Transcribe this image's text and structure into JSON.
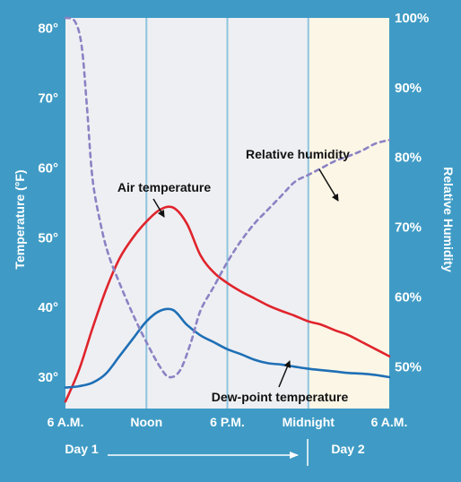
{
  "chart_data": {
    "type": "line",
    "title": "",
    "ylabel": "Temperature (°F)",
    "y2label": "Relative Humidity",
    "xlabel": "",
    "x_ticks": [
      "6 A.M.",
      "Noon",
      "6 P.M.",
      "Midnight",
      "6 A.M."
    ],
    "y_ticks": [
      "30°",
      "40°",
      "50°",
      "60°",
      "70°",
      "80°"
    ],
    "y2_ticks": [
      "50%",
      "60%",
      "70%",
      "80%",
      "90%",
      "100%"
    ],
    "ylim": [
      25.5,
      81.5
    ],
    "y2lim": [
      44,
      100
    ],
    "xlim": [
      0,
      24
    ],
    "grid": "vertical lines at each x tick",
    "legend": "none (series labeled by annotations with arrows)",
    "day_labels": {
      "day1": "Day 1",
      "day2": "Day 2"
    },
    "shaded_region": {
      "x_from": 18,
      "x_to": 24,
      "color": "#fbf6e6"
    },
    "series": [
      {
        "name": "Air temperature",
        "style": "solid",
        "color": "#e0242c",
        "axis": "left",
        "x": [
          0,
          1,
          2,
          3,
          4,
          5,
          6,
          7,
          8,
          9,
          10,
          11,
          12,
          13,
          14,
          15,
          16,
          17,
          18,
          19,
          20,
          21,
          22,
          23,
          24
        ],
        "values": [
          26.5,
          31,
          37,
          42.5,
          47,
          50,
          52.3,
          54,
          54.3,
          52,
          47.5,
          45,
          43.5,
          42.3,
          41.3,
          40.3,
          39.5,
          38.8,
          38,
          37.5,
          36.7,
          36,
          35,
          34,
          33
        ]
      },
      {
        "name": "Dew-point temperature",
        "style": "solid",
        "color": "#1e6fb5",
        "axis": "left",
        "x": [
          0,
          1,
          2,
          3,
          4,
          5,
          6,
          7,
          8,
          9,
          10,
          11,
          12,
          13,
          14,
          15,
          16,
          17,
          18,
          19,
          20,
          21,
          22,
          23,
          24
        ],
        "values": [
          28.5,
          28.7,
          29.2,
          30.5,
          33,
          35.5,
          38,
          39.5,
          39.6,
          37.5,
          36,
          35,
          34,
          33.3,
          32.5,
          32,
          31.8,
          31.5,
          31.2,
          31,
          30.8,
          30.6,
          30.5,
          30.3,
          30
        ]
      },
      {
        "name": "Relative humidity",
        "style": "dashed",
        "color": "#8b82c4",
        "axis": "right",
        "x": [
          0,
          0.7,
          1.2,
          1.6,
          2,
          2.6,
          3.2,
          4,
          5,
          6,
          7,
          7.7,
          8.5,
          9.3,
          10,
          11,
          12,
          13,
          14,
          15,
          16,
          17,
          18,
          19,
          20,
          21,
          22,
          23,
          24
        ],
        "values": [
          100,
          99.5,
          96,
          87,
          77,
          70.5,
          66,
          62,
          57.5,
          53.5,
          50,
          48.5,
          49.5,
          53.5,
          58,
          61.5,
          65,
          68,
          70.5,
          72.5,
          74.5,
          76.5,
          77.5,
          78.5,
          79.5,
          80.2,
          81,
          82,
          82.5
        ]
      }
    ],
    "annotations": [
      {
        "text": "Air temperature",
        "target_series": "Air temperature"
      },
      {
        "text": "Relative humidity",
        "target_series": "Relative humidity"
      },
      {
        "text": "Dew-point temperature",
        "target_series": "Dew-point temperature"
      }
    ]
  },
  "colors": {
    "frame": "#3f9bc5",
    "plot_bg": "#eeeff3",
    "grid": "#8ec4de",
    "axis_text": "#ffffff",
    "label_text": "#111111"
  }
}
